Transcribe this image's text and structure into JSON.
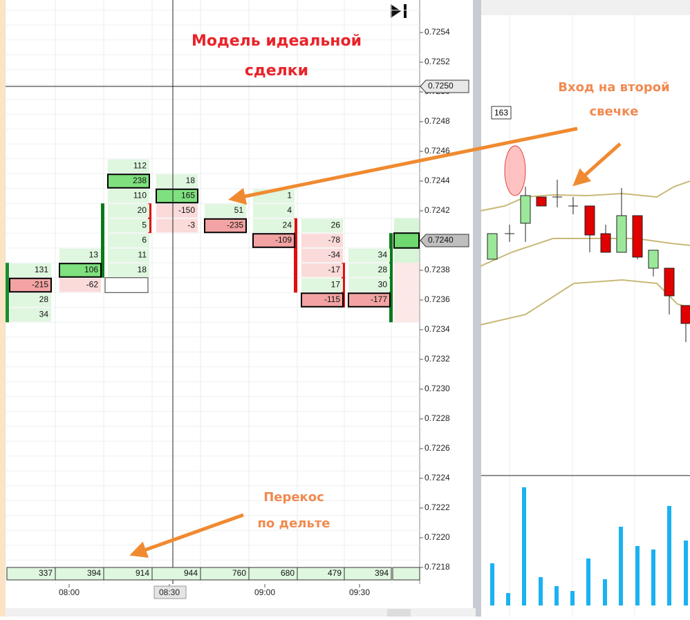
{
  "annotations": {
    "title": [
      "Модель идеальной",
      "сделки"
    ],
    "entry": [
      "Вход на второй",
      "свечке"
    ],
    "skew": [
      "Перекос",
      "по дельте"
    ]
  },
  "price_axis": [
    "0.7254",
    "0.7252",
    "0.7250",
    "0.7248",
    "0.7246",
    "0.7244",
    "0.7242",
    "0.7240",
    "0.7238",
    "0.7236",
    "0.7234",
    "0.7232",
    "0.7230",
    "0.7228",
    "0.7226",
    "0.7224",
    "0.7222",
    "0.7220",
    "0.7218"
  ],
  "cursor_price": "0.7250",
  "last_price": "0.7240",
  "time_axis": [
    "08:00",
    "08:30",
    "09:00",
    "09:30"
  ],
  "footprint": [
    {
      "cells": [
        131,
        -215,
        28,
        34
      ],
      "poc": 1
    },
    {
      "cells": [
        13,
        106,
        -62
      ],
      "poc": 1
    },
    {
      "cells": [
        112,
        238,
        110,
        20,
        5,
        6,
        11,
        18
      ],
      "poc": 1
    },
    {
      "cells": [
        18,
        165,
        -150,
        -3
      ],
      "poc": 1
    },
    {
      "cells": [
        51,
        -235
      ],
      "poc": 1
    },
    {
      "cells": [
        1,
        4,
        24,
        -109
      ],
      "poc": 3
    },
    {
      "cells": [
        26,
        -78,
        -34,
        -17,
        17,
        -115
      ],
      "poc": 5
    },
    {
      "cells": [
        34,
        28,
        30,
        -177
      ],
      "poc": 3
    }
  ],
  "delta_row": [
    337,
    394,
    914,
    944,
    760,
    680,
    479,
    394
  ],
  "level_label": "163"
}
